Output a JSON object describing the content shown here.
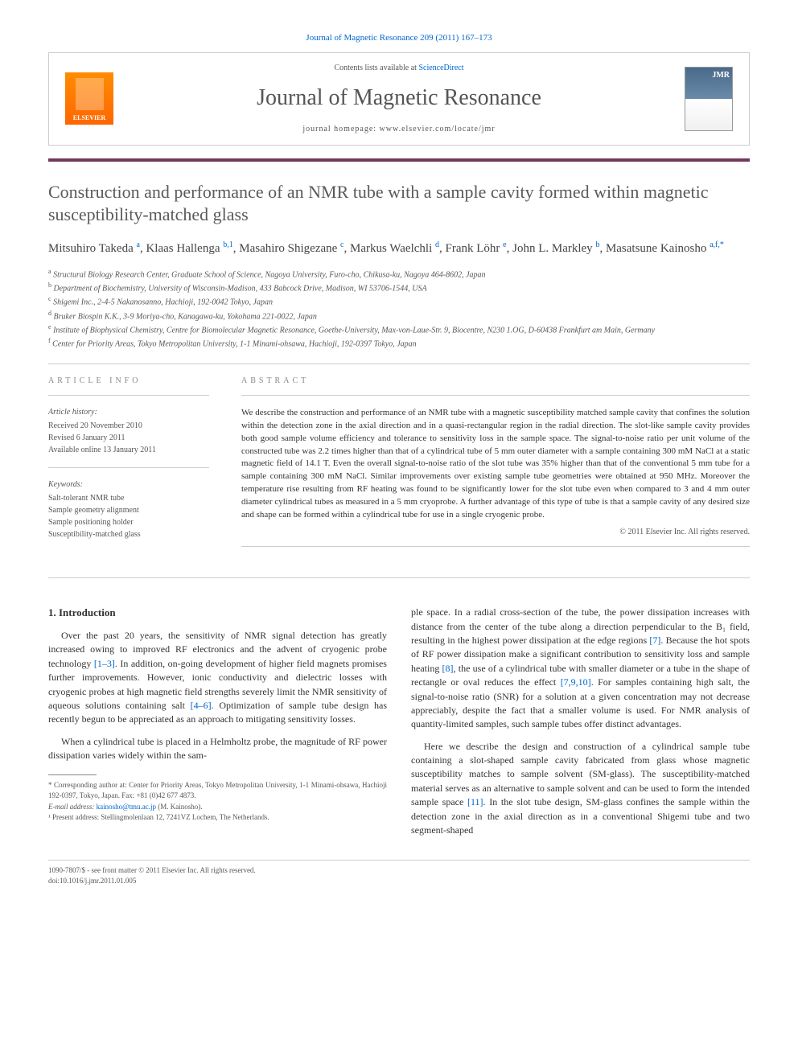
{
  "citation": "Journal of Magnetic Resonance 209 (2011) 167–173",
  "header": {
    "elsevier_label": "ELSEVIER",
    "contents_prefix": "Contents lists available at ",
    "contents_link": "ScienceDirect",
    "journal_title": "Journal of Magnetic Resonance",
    "homepage_prefix": "journal homepage: ",
    "homepage_url": "www.elsevier.com/locate/jmr",
    "cover_label": "JMR"
  },
  "article": {
    "title": "Construction and performance of an NMR tube with a sample cavity formed within magnetic susceptibility-matched glass",
    "authors_html": "Mitsuhiro Takeda <sup>a</sup>, Klaas Hallenga <sup>b,1</sup>, Masahiro Shigezane <sup>c</sup>, Markus Waelchli <sup>d</sup>, Frank Löhr <sup>e</sup>, John L. Markley <sup>b</sup>, Masatsune Kainosho <sup>a,f,*</sup>",
    "affiliations": [
      {
        "tag": "a",
        "text": "Structural Biology Research Center, Graduate School of Science, Nagoya University, Furo-cho, Chikusa-ku, Nagoya 464-8602, Japan"
      },
      {
        "tag": "b",
        "text": "Department of Biochemistry, University of Wisconsin-Madison, 433 Babcock Drive, Madison, WI 53706-1544, USA"
      },
      {
        "tag": "c",
        "text": "Shigemi Inc., 2-4-5 Nakanosanno, Hachioji, 192-0042 Tokyo, Japan"
      },
      {
        "tag": "d",
        "text": "Bruker Biospin K.K., 3-9 Moriya-cho, Kanagawa-ku, Yokohama 221-0022, Japan"
      },
      {
        "tag": "e",
        "text": "Institute of Biophysical Chemistry, Centre for Biomolecular Magnetic Resonance, Goethe-University, Max-von-Laue-Str. 9, Biocentre, N230 1.OG, D-60438 Frankfurt am Main, Germany"
      },
      {
        "tag": "f",
        "text": "Center for Priority Areas, Tokyo Metropolitan University, 1-1 Minami-ohsawa, Hachioji, 192-0397 Tokyo, Japan"
      }
    ]
  },
  "info": {
    "label": "ARTICLE INFO",
    "history_label": "Article history:",
    "history": [
      "Received 20 November 2010",
      "Revised 6 January 2011",
      "Available online 13 January 2011"
    ],
    "keywords_label": "Keywords:",
    "keywords": [
      "Salt-tolerant NMR tube",
      "Sample geometry alignment",
      "Sample positioning holder",
      "Susceptibility-matched glass"
    ]
  },
  "abstract": {
    "label": "ABSTRACT",
    "text": "We describe the construction and performance of an NMR tube with a magnetic susceptibility matched sample cavity that confines the solution within the detection zone in the axial direction and in a quasi-rectangular region in the radial direction. The slot-like sample cavity provides both good sample volume efficiency and tolerance to sensitivity loss in the sample space. The signal-to-noise ratio per unit volume of the constructed tube was 2.2 times higher than that of a cylindrical tube of 5 mm outer diameter with a sample containing 300 mM NaCl at a static magnetic field of 14.1 T. Even the overall signal-to-noise ratio of the slot tube was 35% higher than that of the conventional 5 mm tube for a sample containing 300 mM NaCl. Similar improvements over existing sample tube geometries were obtained at 950 MHz. Moreover the temperature rise resulting from RF heating was found to be significantly lower for the slot tube even when compared to 3 and 4 mm outer diameter cylindrical tubes as measured in a 5 mm cryoprobe. A further advantage of this type of tube is that a sample cavity of any desired size and shape can be formed within a cylindrical tube for use in a single cryogenic probe.",
    "copyright": "© 2011 Elsevier Inc. All rights reserved."
  },
  "body": {
    "heading": "1. Introduction",
    "p1_a": "Over the past 20 years, the sensitivity of NMR signal detection has greatly increased owing to improved RF electronics and the advent of cryogenic probe technology ",
    "p1_ref1": "[1–3]",
    "p1_b": ". In addition, on-going development of higher field magnets promises further improvements. However, ionic conductivity and dielectric losses with cryogenic probes at high magnetic field strengths severely limit the NMR sensitivity of aqueous solutions containing salt ",
    "p1_ref2": "[4–6]",
    "p1_c": ". Optimization of sample tube design has recently begun to be appreciated as an approach to mitigating sensitivity losses.",
    "p2_a": "When a cylindrical tube is placed in a Helmholtz probe, the magnitude of RF power dissipation varies widely within the sam-",
    "p2_b": "ple space. In a radial cross-section of the tube, the power dissipation increases with distance from the center of the tube along a direction perpendicular to the B₁ field, resulting in the highest power dissipation at the edge regions ",
    "p2_ref1": "[7]",
    "p2_c": ". Because the hot spots of RF power dissipation make a significant contribution to sensitivity loss and sample heating ",
    "p2_ref2": "[8]",
    "p2_d": ", the use of a cylindrical tube with smaller diameter or a tube in the shape of rectangle or oval reduces the effect ",
    "p2_ref3": "[7,9,10]",
    "p2_e": ". For samples containing high salt, the signal-to-noise ratio (SNR) for a solution at a given concentration may not decrease appreciably, despite the fact that a smaller volume is used. For NMR analysis of quantity-limited samples, such sample tubes offer distinct advantages.",
    "p3_a": "Here we describe the design and construction of a cylindrical sample tube containing a slot-shaped sample cavity fabricated from glass whose magnetic susceptibility matches to sample solvent (SM-glass). The susceptibility-matched material serves as an alternative to sample solvent and can be used to form the intended sample space ",
    "p3_ref1": "[11]",
    "p3_b": ". In the slot tube design, SM-glass confines the sample within the detection zone in the axial direction as in a conventional Shigemi tube and two segment-shaped"
  },
  "footnotes": {
    "corr": "* Corresponding author at: Center for Priority Areas, Tokyo Metropolitan University, 1-1 Minami-ohsawa, Hachioji 192-0397, Tokyo, Japan. Fax: +81 (0)42 677 4873.",
    "email_label": "E-mail address: ",
    "email": "kainosho@tmu.ac.jp",
    "email_suffix": " (M. Kainosho).",
    "present": "¹ Present address: Stellingmolenlaan 12, 7241VZ Lochem, The Netherlands."
  },
  "footer": {
    "line1": "1090-7807/$ - see front matter © 2011 Elsevier Inc. All rights reserved.",
    "doi": "doi:10.1016/j.jmr.2011.01.005"
  },
  "colors": {
    "link": "#0066cc",
    "rule": "#72385c",
    "border": "#cccccc",
    "text": "#333333",
    "muted": "#555555"
  }
}
